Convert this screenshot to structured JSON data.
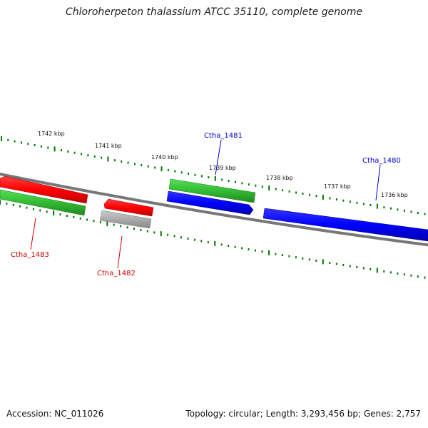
{
  "title": "Chloroherpeton thalassium ATCC 35110, complete genome",
  "footer": {
    "accession": "Accession: NC_011026",
    "summary": "Topology: circular; Length: 3,293,456 bp; Genes: 2,757"
  },
  "scale_labels": [
    "1742 kbp",
    "1741 kbp",
    "1740 kbp",
    "1739 kbp",
    "1738 kbp",
    "1737 kbp",
    "1736 kbp"
  ],
  "gene_labels": [
    {
      "name": "Ctha_1481",
      "color": "#0000cc"
    },
    {
      "name": "Ctha_1480",
      "color": "#0000cc"
    },
    {
      "name": "Ctha_1483",
      "color": "#cc0000"
    },
    {
      "name": "Ctha_1482",
      "color": "#cc0000"
    }
  ],
  "colors": {
    "backbone": "#777777",
    "tick": "#007700",
    "cds_forward": "#0000ff",
    "cds_reverse": "#ff0000",
    "gene_green": "#33bb33",
    "gene_gray": "#aaaaaa"
  }
}
